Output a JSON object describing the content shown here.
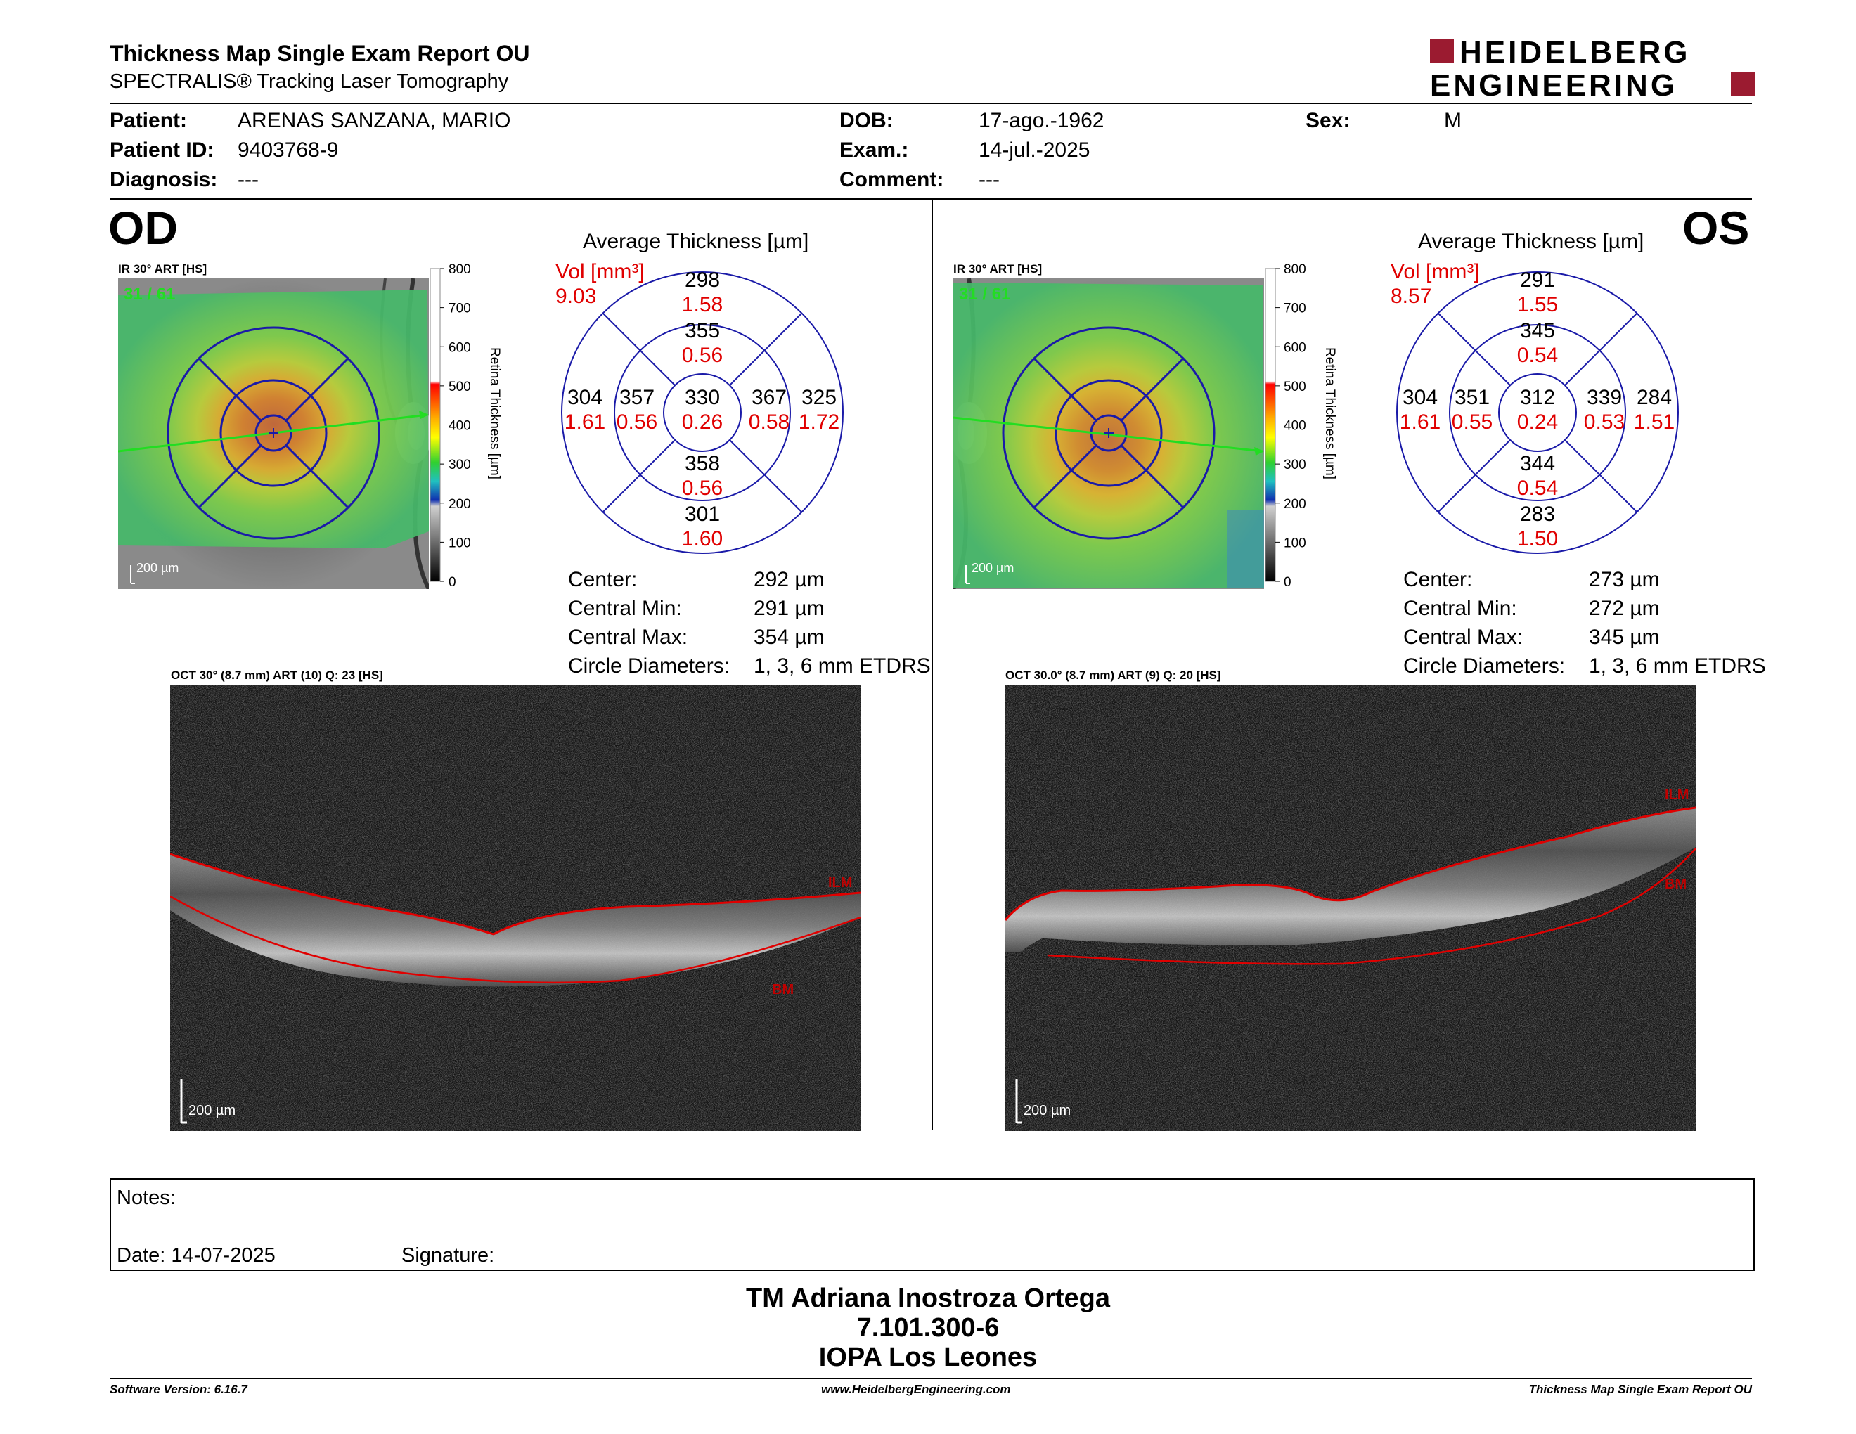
{
  "header": {
    "title": "Thickness Map Single Exam Report OU",
    "subtitle": "SPECTRALIS® Tracking Laser Tomography",
    "brand_line1": "HEIDELBERG",
    "brand_line2": "ENGINEERING",
    "brand_color": "#9b1b30"
  },
  "patient": {
    "patient_label": "Patient:",
    "patient_value": "ARENAS SANZANA, MARIO",
    "id_label": "Patient ID:",
    "id_value": "9403768-9",
    "diagnosis_label": "Diagnosis:",
    "diagnosis_value": "---",
    "dob_label": "DOB:",
    "dob_value": "17-ago.-1962",
    "exam_label": "Exam.:",
    "exam_value": "14-jul.-2025",
    "comment_label": "Comment:",
    "comment_value": "---",
    "sex_label": "Sex:",
    "sex_value": "M"
  },
  "od": {
    "eye": "OD",
    "ir_label": "IR 30° ART [HS]",
    "art_count": "31 / 61",
    "scale_label": "200 µm",
    "colorbar_ticks": [
      "800",
      "700",
      "600",
      "500",
      "400",
      "300",
      "200",
      "100",
      "0"
    ],
    "colorbar_title": "Retina Thickness [µm]",
    "avg_title": "Average Thickness [µm]",
    "vol_label": "Vol [mm³]",
    "vol_value": "9.03",
    "etdrs": {
      "center": {
        "t": "330",
        "v": "0.26"
      },
      "inner_top": {
        "t": "355",
        "v": "0.56"
      },
      "outer_top": {
        "t": "298",
        "v": "1.58"
      },
      "inner_left": {
        "t": "357",
        "v": "0.56"
      },
      "outer_left": {
        "t": "304",
        "v": "1.61"
      },
      "inner_right": {
        "t": "367",
        "v": "0.58"
      },
      "outer_right": {
        "t": "325",
        "v": "1.72"
      },
      "inner_bottom": {
        "t": "358",
        "v": "0.56"
      },
      "outer_bottom": {
        "t": "301",
        "v": "1.60"
      }
    },
    "stats": [
      {
        "label": "Center:",
        "value": "292 µm"
      },
      {
        "label": "Central Min:",
        "value": "291 µm"
      },
      {
        "label": "Central Max:",
        "value": "354 µm"
      },
      {
        "label": "Circle Diameters:",
        "value": "1, 3, 6 mm ETDRS"
      }
    ],
    "oct_label": "OCT 30° (8.7 mm) ART (10) Q: 23 [HS]",
    "ilm": "ILM",
    "bm": "BM",
    "oct_scale": "200 µm"
  },
  "os": {
    "eye": "OS",
    "ir_label": "IR 30° ART [HS]",
    "art_count": "31 / 61",
    "scale_label": "200 µm",
    "colorbar_ticks": [
      "800",
      "700",
      "600",
      "500",
      "400",
      "300",
      "200",
      "100",
      "0"
    ],
    "colorbar_title": "Retina Thickness [µm]",
    "avg_title": "Average Thickness [µm]",
    "vol_label": "Vol [mm³]",
    "vol_value": "8.57",
    "etdrs": {
      "center": {
        "t": "312",
        "v": "0.24"
      },
      "inner_top": {
        "t": "345",
        "v": "0.54"
      },
      "outer_top": {
        "t": "291",
        "v": "1.55"
      },
      "inner_left": {
        "t": "351",
        "v": "0.55"
      },
      "outer_left": {
        "t": "304",
        "v": "1.61"
      },
      "inner_right": {
        "t": "339",
        "v": "0.53"
      },
      "outer_right": {
        "t": "284",
        "v": "1.51"
      },
      "inner_bottom": {
        "t": "344",
        "v": "0.54"
      },
      "outer_bottom": {
        "t": "283",
        "v": "1.50"
      }
    },
    "stats": [
      {
        "label": "Center:",
        "value": "273 µm"
      },
      {
        "label": "Central Min:",
        "value": "272 µm"
      },
      {
        "label": "Central Max:",
        "value": "345 µm"
      },
      {
        "label": "Circle Diameters:",
        "value": "1, 3, 6 mm ETDRS"
      }
    ],
    "oct_label": "OCT 30.0° (8.7 mm) ART (9) Q: 20 [HS]",
    "ilm": "ILM",
    "bm": "BM",
    "oct_scale": "200 µm"
  },
  "notes": {
    "notes_label": "Notes:",
    "date_label": "Date: 14-07-2025",
    "signature_label": "Signature:"
  },
  "signature": {
    "line1": "TM Adriana Inostroza Ortega",
    "line2": "7.101.300-6",
    "line3": "IOPA Los Leones"
  },
  "footer": {
    "software": "Software Version: 6.16.7",
    "website": "www.HeidelbergEngineering.com",
    "report": "Thickness Map Single Exam Report OU"
  },
  "colors": {
    "red": "#e00000",
    "blue": "#1a1aa8",
    "green": "#22dd22"
  }
}
